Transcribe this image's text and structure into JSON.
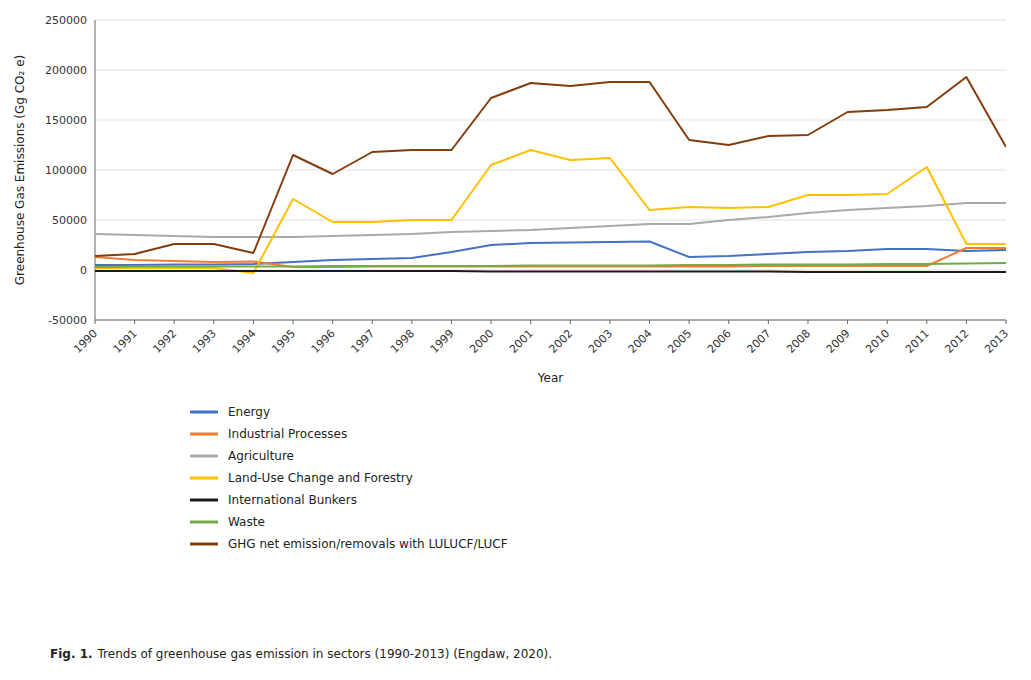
{
  "chart_data": {
    "type": "line",
    "x_label": "Year",
    "y_label": "Greenhouse Gas Emissions (Gg CO₂ e)",
    "annotations": [
      "Fig. 1.",
      "Trends of greenhouse gas emission in sectors (1990-2013) (Engdaw, 2020)."
    ],
    "x": [
      1990,
      1991,
      1992,
      1993,
      1994,
      1995,
      1996,
      1997,
      1998,
      1999,
      2000,
      2001,
      2002,
      2003,
      2004,
      2005,
      2006,
      2007,
      2008,
      2009,
      2010,
      2011,
      2012,
      2013
    ],
    "xlim": [
      1990,
      2013
    ],
    "xticks": [
      1990,
      1991,
      1992,
      1993,
      1994,
      1995,
      1996,
      1997,
      1998,
      1999,
      2000,
      2001,
      2002,
      2003,
      2004,
      2005,
      2006,
      2007,
      2008,
      2009,
      2010,
      2011,
      2012,
      2013
    ],
    "ylim": [
      -50000,
      250000
    ],
    "yticks": [
      -50000,
      0,
      50000,
      100000,
      150000,
      200000,
      250000
    ],
    "grid": true,
    "legend": "bottom",
    "series": [
      {
        "name": "Energy",
        "color": "#4472C4",
        "values": [
          5000,
          5000,
          5500,
          5500,
          6000,
          8000,
          10000,
          11000,
          12000,
          18000,
          25000,
          27000,
          27500,
          28000,
          28500,
          13000,
          14000,
          16000,
          18000,
          19000,
          21000,
          21000,
          19000,
          20000
        ]
      },
      {
        "name": "Industrial Processes",
        "color": "#ED7D31",
        "values": [
          13000,
          10000,
          9000,
          8000,
          8500,
          3000,
          3000,
          3500,
          3500,
          3500,
          3500,
          3500,
          3500,
          3500,
          3500,
          3500,
          3500,
          4000,
          4000,
          4000,
          4000,
          4000,
          22000,
          22000
        ]
      },
      {
        "name": "Agriculture",
        "color": "#A9A9A9",
        "values": [
          36000,
          35000,
          34000,
          33000,
          33000,
          33000,
          34000,
          35000,
          36000,
          38000,
          39000,
          40000,
          42000,
          44000,
          46000,
          46000,
          50000,
          53000,
          57000,
          60000,
          62000,
          64000,
          67000,
          67000
        ]
      },
      {
        "name": "Land-Use Change and Forestry",
        "color": "#FFC000",
        "values": [
          2000,
          2000,
          2000,
          2000,
          -3000,
          71000,
          48000,
          48000,
          50000,
          50000,
          105000,
          120000,
          110000,
          112000,
          60000,
          63000,
          62000,
          63000,
          75000,
          75000,
          76000,
          103000,
          26000,
          26000
        ]
      },
      {
        "name": "International Bunkers",
        "color": "#1A1A1A",
        "values": [
          -1000,
          -1000,
          -1000,
          -1000,
          -1000,
          -1000,
          -1000,
          -1000,
          -1000,
          -1000,
          -1500,
          -1500,
          -1500,
          -1500,
          -1500,
          -1500,
          -1500,
          -1500,
          -2000,
          -2000,
          -2000,
          -2000,
          -2000,
          -2000
        ]
      },
      {
        "name": "Waste",
        "color": "#70AD47",
        "values": [
          3000,
          3500,
          3500,
          3500,
          3500,
          3500,
          4000,
          4000,
          4000,
          4000,
          4000,
          4500,
          4500,
          4500,
          4500,
          5000,
          5000,
          5500,
          5500,
          5500,
          6000,
          6000,
          6500,
          7000
        ]
      },
      {
        "name": "GHG net emission/removals with LULUCF/LUCF",
        "color": "#843C0C",
        "values": [
          14000,
          16000,
          26000,
          26000,
          17000,
          115000,
          96000,
          118000,
          120000,
          120000,
          172000,
          187000,
          184000,
          188000,
          188000,
          130000,
          125000,
          134000,
          135000,
          158000,
          160000,
          163000,
          193000,
          123000
        ]
      }
    ]
  }
}
